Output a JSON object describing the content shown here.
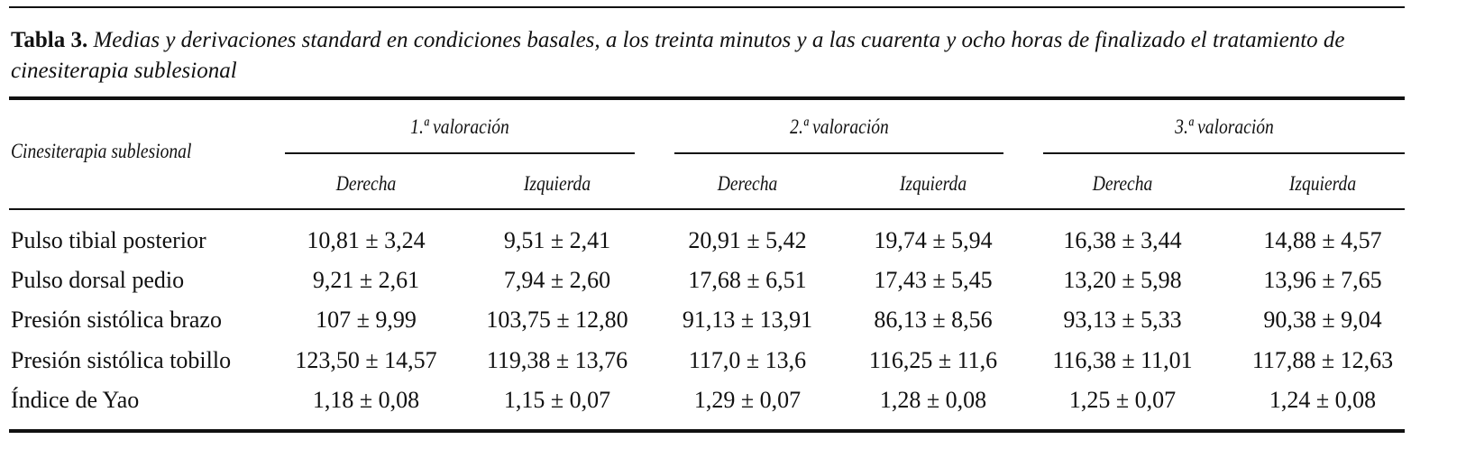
{
  "caption": {
    "label": "Tabla 3.",
    "text": "Medias y derivaciones standard en condiciones basales, a los treinta minutos y a las cuarenta y ocho horas de finalizado el tratamiento de cinesiterapia sublesional"
  },
  "table": {
    "row_header": "Cinesiterapia sublesional",
    "groups": [
      "1.ª valoración",
      "2.ª valoración",
      "3.ª valoración"
    ],
    "subheaders": [
      "Derecha",
      "Izquierda",
      "Derecha",
      "Izquierda",
      "Derecha",
      "Izquierda"
    ],
    "rows": [
      {
        "label": "Pulso tibial posterior",
        "cells": [
          "10,81 ± 3,24",
          "9,51 ± 2,41",
          "20,91 ± 5,42",
          "19,74 ± 5,94",
          "16,38 ± 3,44",
          "14,88 ± 4,57"
        ]
      },
      {
        "label": "Pulso dorsal pedio",
        "cells": [
          "9,21 ± 2,61",
          "7,94 ± 2,60",
          "17,68 ± 6,51",
          "17,43 ± 5,45",
          "13,20 ± 5,98",
          "13,96 ± 7,65"
        ]
      },
      {
        "label": "Presión sistólica brazo",
        "cells": [
          "107 ± 9,99",
          "103,75 ± 12,80",
          "91,13 ± 13,91",
          "86,13 ± 8,56",
          "93,13 ± 5,33",
          "90,38 ± 9,04"
        ]
      },
      {
        "label": "Presión sistólica tobillo",
        "cells": [
          "123,50 ± 14,57",
          "119,38 ± 13,76",
          "117,0 ± 13,6",
          "116,25 ± 11,6",
          "116,38 ± 11,01",
          "117,88 ± 12,63"
        ]
      },
      {
        "label": "Índice de Yao",
        "cells": [
          "1,18 ± 0,08",
          "1,15 ± 0,07",
          "1,29 ± 0,07",
          "1,28 ± 0,08",
          "1,25 ± 0,07",
          "1,24 ± 0,08"
        ]
      }
    ]
  }
}
